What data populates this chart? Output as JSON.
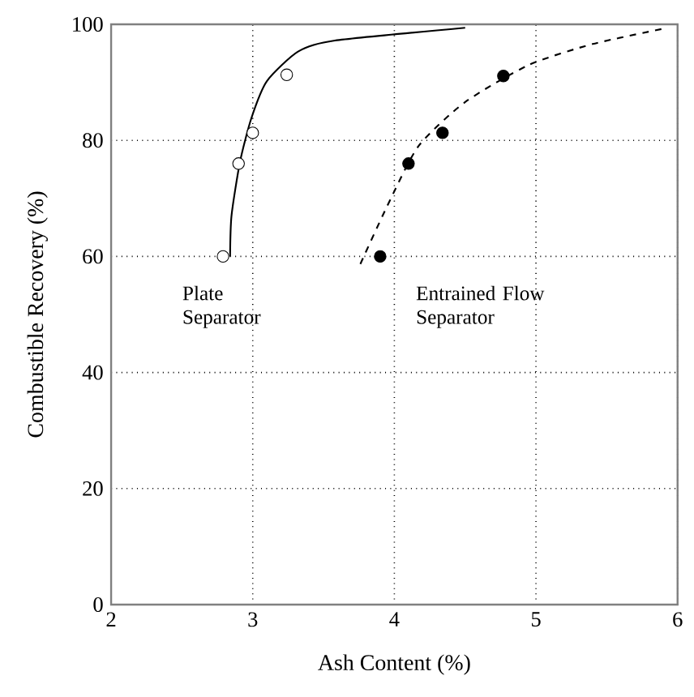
{
  "chart_data": {
    "type": "scatter",
    "xlabel": "Ash Content (%)",
    "ylabel": "Combustible Recovery (%)",
    "xlim": [
      2,
      6
    ],
    "ylim": [
      0,
      100
    ],
    "xticks": [
      2,
      3,
      4,
      5,
      6
    ],
    "yticks": [
      0,
      20,
      40,
      60,
      80,
      100
    ],
    "grid": true,
    "series": [
      {
        "type": "line",
        "color": "#000000",
        "marker": "none",
        "line_style": "solid",
        "x": [
          2.84,
          2.85,
          2.91,
          2.99,
          3.1,
          3.32,
          3.58,
          4.5
        ],
        "values": [
          60,
          67,
          76.3,
          83.8,
          90.2,
          95.3,
          97.2,
          99.4
        ]
      },
      {
        "color": "#ffffff",
        "marker": "circle",
        "x": [
          2.79,
          2.9,
          3.0,
          3.24
        ],
        "values": [
          60,
          76,
          81.3,
          91.3
        ]
      },
      {
        "type": "line",
        "color": "#000000",
        "marker": "none",
        "line_style": "dashed",
        "x": [
          3.76,
          3.95,
          4.17,
          4.5,
          4.95,
          5.4,
          5.93
        ],
        "values": [
          58.7,
          68.7,
          79,
          86.6,
          93,
          96.6,
          99.4
        ]
      },
      {
        "color": "#000000",
        "marker": "circle",
        "x": [
          3.9,
          4.1,
          4.34,
          4.77
        ],
        "values": [
          60,
          76,
          81.3,
          91.1
        ]
      }
    ],
    "annotations": [
      "Plate Separator",
      "Entrained Flow Separator"
    ]
  }
}
